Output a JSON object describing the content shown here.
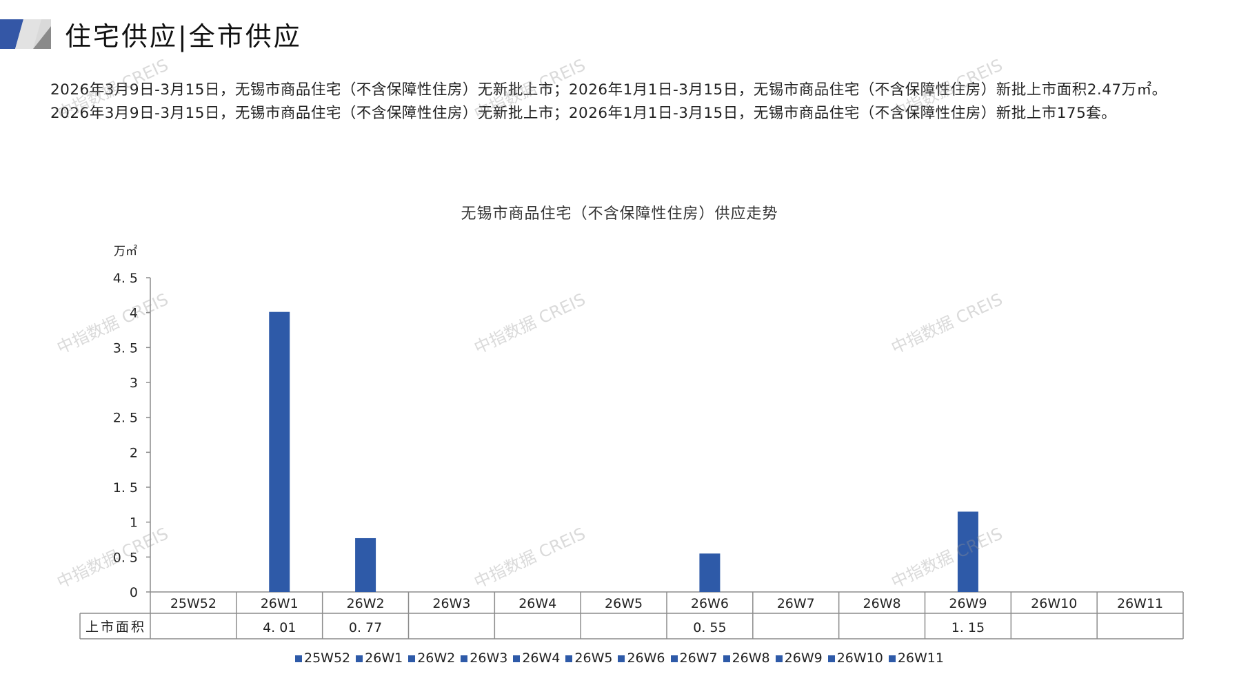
{
  "header": {
    "title": "住宅供应|全市供应"
  },
  "summary": "2026年3月9日-3月15日，无锡市商品住宅（不含保障性住房）无新批上市；2026年1月1日-3月15日，无锡市商品住宅（不含保障性住房）新批上市面积2.47万㎡。2026年3月9日-3月15日，无锡市商品住宅（不含保障性住房）无新批上市；2026年1月1日-3月15日，无锡市商品住宅（不含保障性住房）新批上市175套。",
  "watermark": "中指数据 CREIS",
  "colors": {
    "bar": "#2e5aa8",
    "logo_blue": "#3457a6",
    "logo_gray": "#9a9a9a"
  },
  "chart_data": {
    "type": "bar",
    "title": "无锡市商品住宅（不含保障性住房）供应走势",
    "ylabel": "万㎡",
    "ylim": [
      0,
      4.5
    ],
    "yticks": [
      "0",
      "0.5",
      "1",
      "1.5",
      "2",
      "2.5",
      "3",
      "3.5",
      "4",
      "4.5"
    ],
    "categories": [
      "25W52",
      "26W1",
      "26W2",
      "26W3",
      "26W4",
      "26W5",
      "26W6",
      "26W7",
      "26W8",
      "26W9",
      "26W10",
      "26W11"
    ],
    "series": [
      {
        "name": "上市面积",
        "values": [
          null,
          4.01,
          0.77,
          null,
          null,
          null,
          0.55,
          null,
          null,
          1.15,
          null,
          null
        ]
      }
    ],
    "table_labels": [
      "",
      "4.01",
      "0.77",
      "",
      "",
      "",
      "0.55",
      "",
      "",
      "1.15",
      "",
      ""
    ],
    "legend_position": "bottom",
    "grid": false
  }
}
